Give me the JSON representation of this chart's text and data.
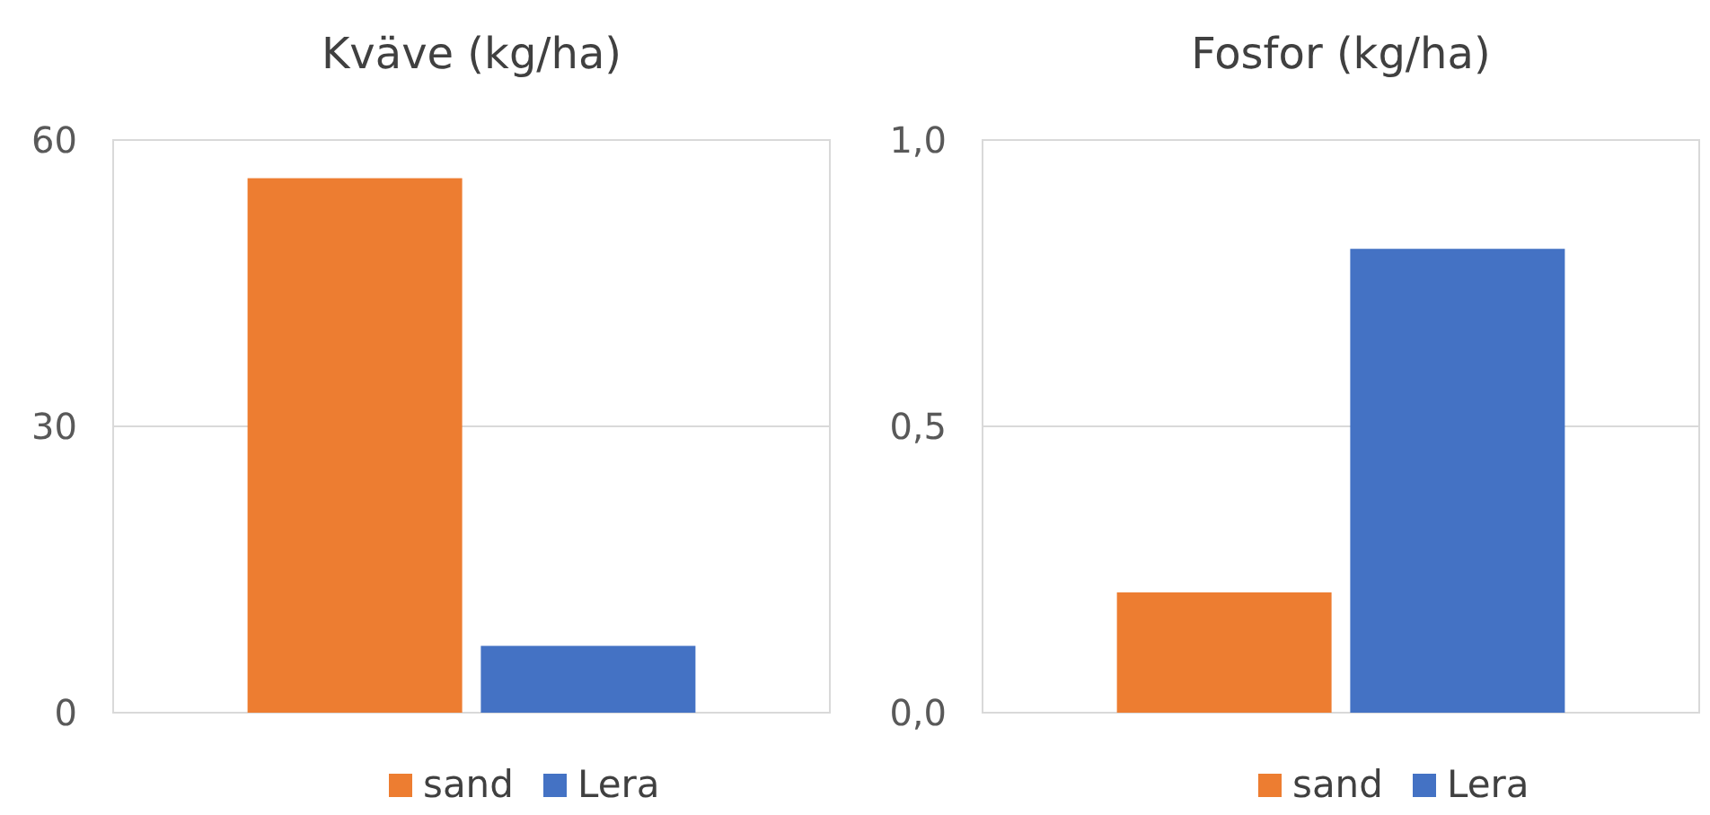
{
  "chart_data": [
    {
      "type": "bar",
      "title": "Kväve (kg/ha)",
      "categories": [
        null
      ],
      "series": [
        {
          "name": "sand",
          "color": "#ed7d31",
          "values": [
            56
          ]
        },
        {
          "name": "Lera",
          "color": "#4472c4",
          "values": [
            7
          ]
        }
      ],
      "ylim": [
        0,
        60
      ],
      "yticks": [
        0,
        30,
        60
      ],
      "grid": "y",
      "legend": "bottom"
    },
    {
      "type": "bar",
      "title": "Fosfor (kg/ha)",
      "categories": [
        null
      ],
      "series": [
        {
          "name": "sand",
          "color": "#ed7d31",
          "values": [
            0.21
          ]
        },
        {
          "name": "Lera",
          "color": "#4472c4",
          "values": [
            0.81
          ]
        }
      ],
      "ylim": [
        0,
        1
      ],
      "yticks": [
        {
          "value": 0,
          "label": "0,0"
        },
        {
          "value": 0.5,
          "label": "0,5"
        },
        {
          "value": 1,
          "label": "1,0"
        }
      ],
      "grid": "y",
      "legend": "bottom"
    }
  ]
}
